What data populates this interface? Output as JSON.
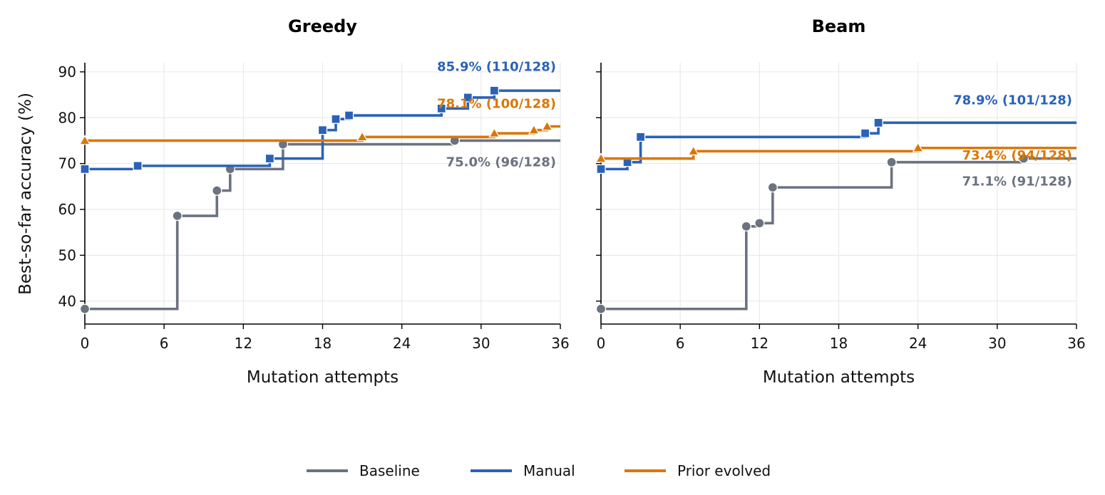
{
  "chart_data": [
    {
      "type": "line",
      "step": true,
      "title": "Greedy",
      "xlabel": "Mutation attempts",
      "ylabel": "Best-so-far accuracy (%)",
      "xlim": [
        0,
        36
      ],
      "ylim": [
        35,
        92
      ],
      "xticks": [
        0,
        6,
        12,
        18,
        24,
        30,
        36
      ],
      "yticks": [
        40,
        50,
        60,
        70,
        80,
        90
      ],
      "grid": true,
      "series": [
        {
          "name": "Baseline",
          "color": "#6b7280",
          "marker": "circle",
          "points": [
            [
              0,
              38.3
            ],
            [
              7,
              58.6
            ],
            [
              10,
              64.1
            ],
            [
              11,
              68.8
            ],
            [
              15,
              74.2
            ],
            [
              28,
              75.0
            ]
          ],
          "end_label": "75.0% (96/128)"
        },
        {
          "name": "Manual",
          "color": "#2a62b8",
          "marker": "square",
          "points": [
            [
              0,
              68.8
            ],
            [
              4,
              69.5
            ],
            [
              14,
              71.1
            ],
            [
              18,
              77.3
            ],
            [
              19,
              79.7
            ],
            [
              20,
              80.5
            ],
            [
              27,
              82.0
            ],
            [
              29,
              84.4
            ],
            [
              31,
              85.9
            ]
          ],
          "end_label": "85.9% (110/128)"
        },
        {
          "name": "Prior evolved",
          "color": "#d97706",
          "marker": "triangle",
          "points": [
            [
              0,
              75.0
            ],
            [
              21,
              75.8
            ],
            [
              31,
              76.6
            ],
            [
              34,
              77.3
            ],
            [
              35,
              78.1
            ]
          ],
          "end_label": "78.1% (100/128)"
        }
      ]
    },
    {
      "type": "line",
      "step": true,
      "title": "Beam",
      "xlabel": "Mutation attempts",
      "ylabel": "",
      "xlim": [
        0,
        36
      ],
      "ylim": [
        35,
        92
      ],
      "xticks": [
        0,
        6,
        12,
        18,
        24,
        30,
        36
      ],
      "yticks": [
        40,
        50,
        60,
        70,
        80,
        90
      ],
      "grid": true,
      "series": [
        {
          "name": "Baseline",
          "color": "#6b7280",
          "marker": "circle",
          "points": [
            [
              0,
              38.3
            ],
            [
              11,
              56.3
            ],
            [
              12,
              57.0
            ],
            [
              13,
              64.8
            ],
            [
              22,
              70.3
            ],
            [
              32,
              71.1
            ]
          ],
          "end_label": "71.1% (91/128)"
        },
        {
          "name": "Manual",
          "color": "#2a62b8",
          "marker": "square",
          "points": [
            [
              0,
              68.8
            ],
            [
              2,
              70.3
            ],
            [
              3,
              75.8
            ],
            [
              20,
              76.6
            ],
            [
              21,
              78.9
            ]
          ],
          "end_label": "78.9% (101/128)"
        },
        {
          "name": "Prior evolved",
          "color": "#d97706",
          "marker": "triangle",
          "points": [
            [
              0,
              71.1
            ],
            [
              7,
              72.7
            ],
            [
              24,
              73.4
            ]
          ],
          "end_label": "73.4% (94/128)"
        }
      ]
    }
  ],
  "legend": {
    "placement": "bottom-center",
    "items": [
      {
        "label": "Baseline",
        "color": "#6b7280"
      },
      {
        "label": "Manual",
        "color": "#2a62b8"
      },
      {
        "label": "Prior evolved",
        "color": "#d97706"
      }
    ]
  }
}
